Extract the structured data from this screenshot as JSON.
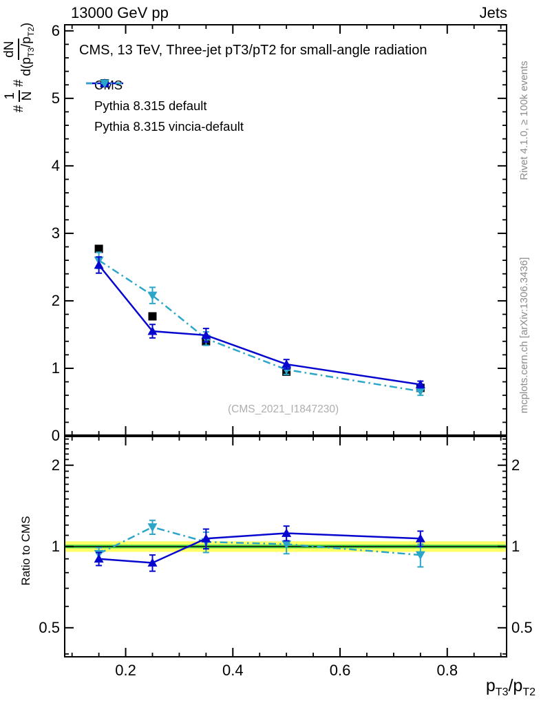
{
  "header": {
    "left": "13000 GeV pp",
    "right": "Jets"
  },
  "plot": {
    "title": "CMS, 13 TeV, Three-jet pT3/pT2 for small-angle radiation",
    "watermark": "(CMS_2021_I1847230)",
    "side_top": "Rivet 4.1.0, ≥ 100k events",
    "side_bottom": "mcplots.cern.ch [arXiv:1306.3436]"
  },
  "legend": [
    {
      "label": "CMS"
    },
    {
      "label": "Pythia 8.315 default"
    },
    {
      "label": "Pythia 8.315 vincia-default"
    }
  ],
  "axes": {
    "ylabel": {
      "prefix": "#",
      "frac1_num": "1",
      "frac1_den": "N",
      "mid": "#",
      "frac2_num": "dN",
      "d1": "d(p",
      "s1": "T3",
      "d2": "/p",
      "s2": "T2",
      "d3": ")"
    },
    "ratio_ylabel": "Ratio to CMS",
    "xlabel": {
      "p1": "p",
      "s1": "T3",
      "p2": "/p",
      "s2": "T2"
    }
  },
  "colors": {
    "cms": "#000000",
    "pythia_default": "#0606cf",
    "pythia_vincia": "#2ba6c9",
    "band_yellow": "#ffff66",
    "band_green": "#44d544",
    "gray_text": "#8c8c8c"
  },
  "chart_data": [
    {
      "id": "main",
      "type": "line",
      "x": [
        0.15,
        0.25,
        0.35,
        0.5,
        0.75
      ],
      "xlim": [
        0.085,
        0.912
      ],
      "ylim": [
        0,
        6.1
      ],
      "yscale": "linear",
      "xticks_major": [
        0.2,
        0.4,
        0.6,
        0.8
      ],
      "xtick_minor_step": 0.05,
      "yticks_major": [
        0,
        1,
        2,
        3,
        4,
        5,
        6
      ],
      "ytick_minor_step": 0.2,
      "ylabel": "1/N dN/d(pT3/pT2)",
      "series": [
        {
          "name": "CMS",
          "color": "#000000",
          "marker": "square",
          "line": "none",
          "z": 0,
          "values": [
            2.77,
            1.77,
            1.4,
            0.95,
            0.71
          ],
          "errors": [
            0.04,
            0.04,
            0.04,
            0.03,
            0.03
          ]
        },
        {
          "name": "Pythia 8.315 default",
          "color": "#0606cf",
          "marker": "triangle-up",
          "line": "solid",
          "z": 2,
          "values": [
            2.53,
            1.55,
            1.49,
            1.06,
            0.76
          ],
          "errors": [
            0.12,
            0.1,
            0.1,
            0.07,
            0.05
          ]
        },
        {
          "name": "Pythia 8.315 vincia-default",
          "color": "#2ba6c9",
          "marker": "triangle-down",
          "line": "dashdot",
          "z": 1,
          "values": [
            2.6,
            2.08,
            1.44,
            0.98,
            0.66
          ],
          "errors": [
            0.12,
            0.12,
            0.1,
            0.07,
            0.06
          ]
        }
      ]
    },
    {
      "id": "ratio",
      "type": "line",
      "x": [
        0.15,
        0.25,
        0.35,
        0.5,
        0.75
      ],
      "xlim": [
        0.085,
        0.912
      ],
      "ylim": [
        0.388,
        2.57
      ],
      "yscale": "log",
      "xticks_major": [
        0.2,
        0.4,
        0.6,
        0.8
      ],
      "xtick_minor_step": 0.05,
      "yticks_major": [
        0.5,
        1,
        2
      ],
      "yticks_minor": [
        0.4,
        0.6,
        0.7,
        0.8,
        0.9,
        1.1,
        1.2,
        1.3,
        1.4,
        1.5,
        1.6,
        1.7,
        1.8,
        1.9,
        2.1,
        2.2,
        2.3,
        2.4,
        2.5
      ],
      "ylabel": "Ratio to CMS",
      "band_yellow": [
        0.955,
        1.045
      ],
      "band_green": [
        0.985,
        1.015
      ],
      "reference_line": 1,
      "series": [
        {
          "name": "Pythia 8.315 default",
          "color": "#0606cf",
          "marker": "triangle-up",
          "line": "solid",
          "z": 2,
          "values": [
            0.9,
            0.87,
            1.07,
            1.12,
            1.07
          ],
          "errors": [
            0.05,
            0.06,
            0.09,
            0.07,
            0.07
          ]
        },
        {
          "name": "Pythia 8.315 vincia-default",
          "color": "#2ba6c9",
          "marker": "triangle-down",
          "line": "dashdot",
          "z": 1,
          "values": [
            0.94,
            1.18,
            1.04,
            1.02,
            0.93
          ],
          "errors": [
            0.05,
            0.07,
            0.09,
            0.08,
            0.09
          ]
        }
      ]
    }
  ]
}
